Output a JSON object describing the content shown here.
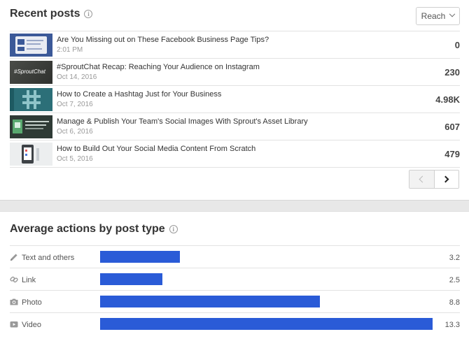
{
  "recent_posts": {
    "title": "Recent posts",
    "metric_dropdown": "Reach",
    "posts": [
      {
        "title": "Are You Missing out on These Facebook Business Page Tips?",
        "date": "2:01 PM",
        "value": "0",
        "thumb": "facebook-page-thumb"
      },
      {
        "title": "#SproutChat Recap: Reaching Your Audience on Instagram",
        "date": "Oct 14, 2016",
        "value": "230",
        "thumb": "sproutchat-thumb",
        "thumb_text": "#SproutChat"
      },
      {
        "title": "How to Create a Hashtag Just for Your Business",
        "date": "Oct 7, 2016",
        "value": "4.98K",
        "thumb": "hashtag-thumb"
      },
      {
        "title": "Manage & Publish Your Team's Social Images With Sprout's Asset Library",
        "date": "Oct 6, 2016",
        "value": "607",
        "thumb": "asset-library-thumb"
      },
      {
        "title": "How to Build Out Your Social Media Content From Scratch",
        "date": "Oct 5, 2016",
        "value": "479",
        "thumb": "content-scratch-thumb"
      }
    ]
  },
  "average_actions": {
    "title": "Average actions by post type",
    "max": 13.3,
    "rows": [
      {
        "label": "Text and others",
        "value": 3.2,
        "value_text": "3.2",
        "icon": "pencil-icon"
      },
      {
        "label": "Link",
        "value": 2.5,
        "value_text": "2.5",
        "icon": "link-icon"
      },
      {
        "label": "Photo",
        "value": 8.8,
        "value_text": "8.8",
        "icon": "camera-icon"
      },
      {
        "label": "Video",
        "value": 13.3,
        "value_text": "13.3",
        "icon": "video-icon"
      }
    ]
  },
  "colors": {
    "bar": "#2a5bd7",
    "accent_blue": "#3b5998"
  }
}
